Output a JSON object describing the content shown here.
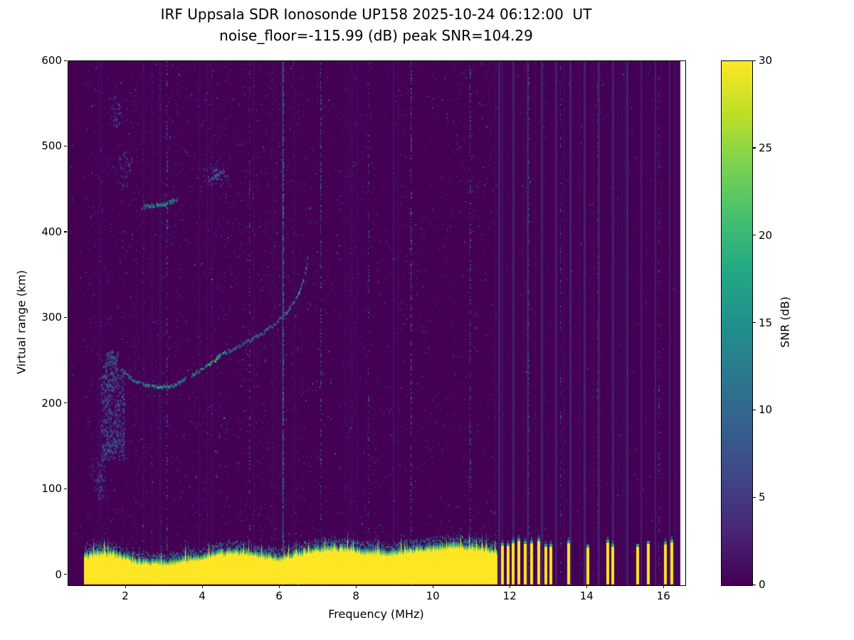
{
  "chart_data": {
    "type": "heatmap",
    "title": "IRF Uppsala SDR Ionosonde UP158 2025-10-24 06:12:00  UT",
    "subtitle": "noise_floor=-115.99 (dB) peak SNR=104.29",
    "xlabel": "Frequency (MHz)",
    "ylabel": "Virtual range (km)",
    "xlim": [
      0.5,
      16.55
    ],
    "ylim": [
      -12,
      600
    ],
    "xticks": [
      2,
      4,
      6,
      8,
      10,
      12,
      14,
      16
    ],
    "yticks": [
      0,
      100,
      200,
      300,
      400,
      500,
      600
    ],
    "grid": false,
    "colorbar": {
      "label": "SNR (dB)",
      "ticks": [
        0,
        5,
        10,
        15,
        20,
        25,
        30
      ],
      "vmin": 0,
      "vmax": 30
    },
    "colormap": {
      "name": "viridis",
      "stops": [
        [
          0.0,
          "#440154"
        ],
        [
          0.1,
          "#482475"
        ],
        [
          0.2,
          "#414487"
        ],
        [
          0.3,
          "#355f8d"
        ],
        [
          0.4,
          "#2a788e"
        ],
        [
          0.5,
          "#21918c"
        ],
        [
          0.6,
          "#22a884"
        ],
        [
          0.7,
          "#44bf70"
        ],
        [
          0.8,
          "#7ad151"
        ],
        [
          0.9,
          "#bddf26"
        ],
        [
          1.0,
          "#fde725"
        ]
      ]
    },
    "features": {
      "ground_band": {
        "f_start": 0.9,
        "f_end": 11.65,
        "base_km": -11,
        "top_profile": [
          [
            0.9,
            20
          ],
          [
            1.3,
            25
          ],
          [
            1.8,
            22
          ],
          [
            2.3,
            14
          ],
          [
            3.0,
            13
          ],
          [
            3.6,
            16
          ],
          [
            4.2,
            22
          ],
          [
            4.8,
            26
          ],
          [
            5.4,
            22
          ],
          [
            6.0,
            18
          ],
          [
            6.5,
            24
          ],
          [
            7.0,
            28
          ],
          [
            7.6,
            30
          ],
          [
            8.2,
            26
          ],
          [
            8.8,
            24
          ],
          [
            9.4,
            28
          ],
          [
            10.0,
            30
          ],
          [
            10.6,
            33
          ],
          [
            11.2,
            30
          ],
          [
            11.65,
            26
          ]
        ]
      },
      "pulse_bars": {
        "freqs": [
          11.78,
          11.92,
          12.06,
          12.2,
          12.36,
          12.54,
          12.72,
          12.9,
          13.04,
          13.5,
          14.0,
          14.52,
          14.64,
          15.3,
          15.56,
          16.02,
          16.18
        ],
        "base_km": -11,
        "top_km": 36
      },
      "traces": [
        {
          "name": "f-region-first-hop-flat",
          "points": [
            [
              1.85,
              240,
              9
            ],
            [
              2.1,
              230,
              11
            ],
            [
              2.35,
              224,
              12
            ],
            [
              2.6,
              221,
              14
            ],
            [
              2.85,
              220,
              16
            ],
            [
              3.1,
              220,
              15
            ],
            [
              3.35,
              223,
              12
            ],
            [
              3.55,
              229,
              10
            ]
          ]
        },
        {
          "name": "f-region-first-hop-rising",
          "points": [
            [
              3.7,
              233,
              12
            ],
            [
              3.9,
              239,
              15
            ],
            [
              4.1,
              244,
              18
            ],
            [
              4.3,
              251,
              20
            ],
            [
              4.5,
              258,
              17
            ],
            [
              4.75,
              263,
              11
            ],
            [
              5.0,
              269,
              8
            ],
            [
              5.3,
              276,
              9
            ],
            [
              5.6,
              284,
              8
            ],
            [
              5.9,
              294,
              9
            ],
            [
              6.15,
              306,
              10
            ],
            [
              6.35,
              318,
              12
            ],
            [
              6.5,
              332,
              15
            ],
            [
              6.6,
              345,
              17
            ],
            [
              6.68,
              358,
              12
            ],
            [
              6.73,
              372,
              8
            ]
          ]
        },
        {
          "name": "second-hop-flat",
          "points": [
            [
              2.4,
              428,
              10
            ],
            [
              2.6,
              431,
              13
            ],
            [
              2.8,
              432,
              16
            ],
            [
              3.0,
              433,
              16
            ],
            [
              3.2,
              436,
              12
            ],
            [
              3.35,
              439,
              9
            ]
          ]
        },
        {
          "name": "second-hop-rising",
          "points": [
            [
              4.15,
              460,
              8
            ],
            [
              4.35,
              466,
              10
            ],
            [
              4.55,
              472,
              8
            ]
          ]
        }
      ],
      "clusters": [
        {
          "f0": 1.35,
          "f1": 1.95,
          "k0": 135,
          "k1": 235,
          "count": 500,
          "snr": 8
        },
        {
          "f0": 1.45,
          "f1": 1.8,
          "k0": 230,
          "k1": 262,
          "count": 120,
          "snr": 9
        },
        {
          "f0": 1.1,
          "f1": 1.45,
          "k0": 90,
          "k1": 140,
          "count": 80,
          "snr": 6
        },
        {
          "f0": 1.55,
          "f1": 1.85,
          "k0": 525,
          "k1": 560,
          "count": 30,
          "snr": 7
        },
        {
          "f0": 1.8,
          "f1": 2.15,
          "k0": 455,
          "k1": 495,
          "count": 40,
          "snr": 7
        },
        {
          "f0": 4.0,
          "f1": 4.7,
          "k0": 455,
          "k1": 478,
          "count": 40,
          "snr": 8
        }
      ],
      "rfi_lines": [
        {
          "f": 6.08,
          "snr": 9,
          "p": 0.7
        },
        {
          "f": 9.4,
          "snr": 6,
          "p": 0.3
        },
        {
          "f": 7.05,
          "snr": 5,
          "p": 0.22
        },
        {
          "f": 10.95,
          "snr": 5,
          "p": 0.22
        },
        {
          "f": 3.05,
          "snr": 5,
          "p": 0.18
        },
        {
          "f": 5.2,
          "snr": 4,
          "p": 0.15
        },
        {
          "f": 8.3,
          "snr": 4,
          "p": 0.15
        },
        {
          "f": 12.45,
          "snr": 4,
          "p": 0.2
        },
        {
          "f": 13.3,
          "snr": 3,
          "p": 0.15
        },
        {
          "f": 14.25,
          "snr": 3,
          "p": 0.15
        },
        {
          "f": 15.85,
          "snr": 3,
          "p": 0.15
        }
      ],
      "right_gap": {
        "f_start": 16.42
      },
      "noise": {
        "seed": 1337,
        "density_low": 0.012,
        "density_mid": 0.008,
        "density_high": 0.0028,
        "stripe_spacing": 0.37
      }
    }
  }
}
